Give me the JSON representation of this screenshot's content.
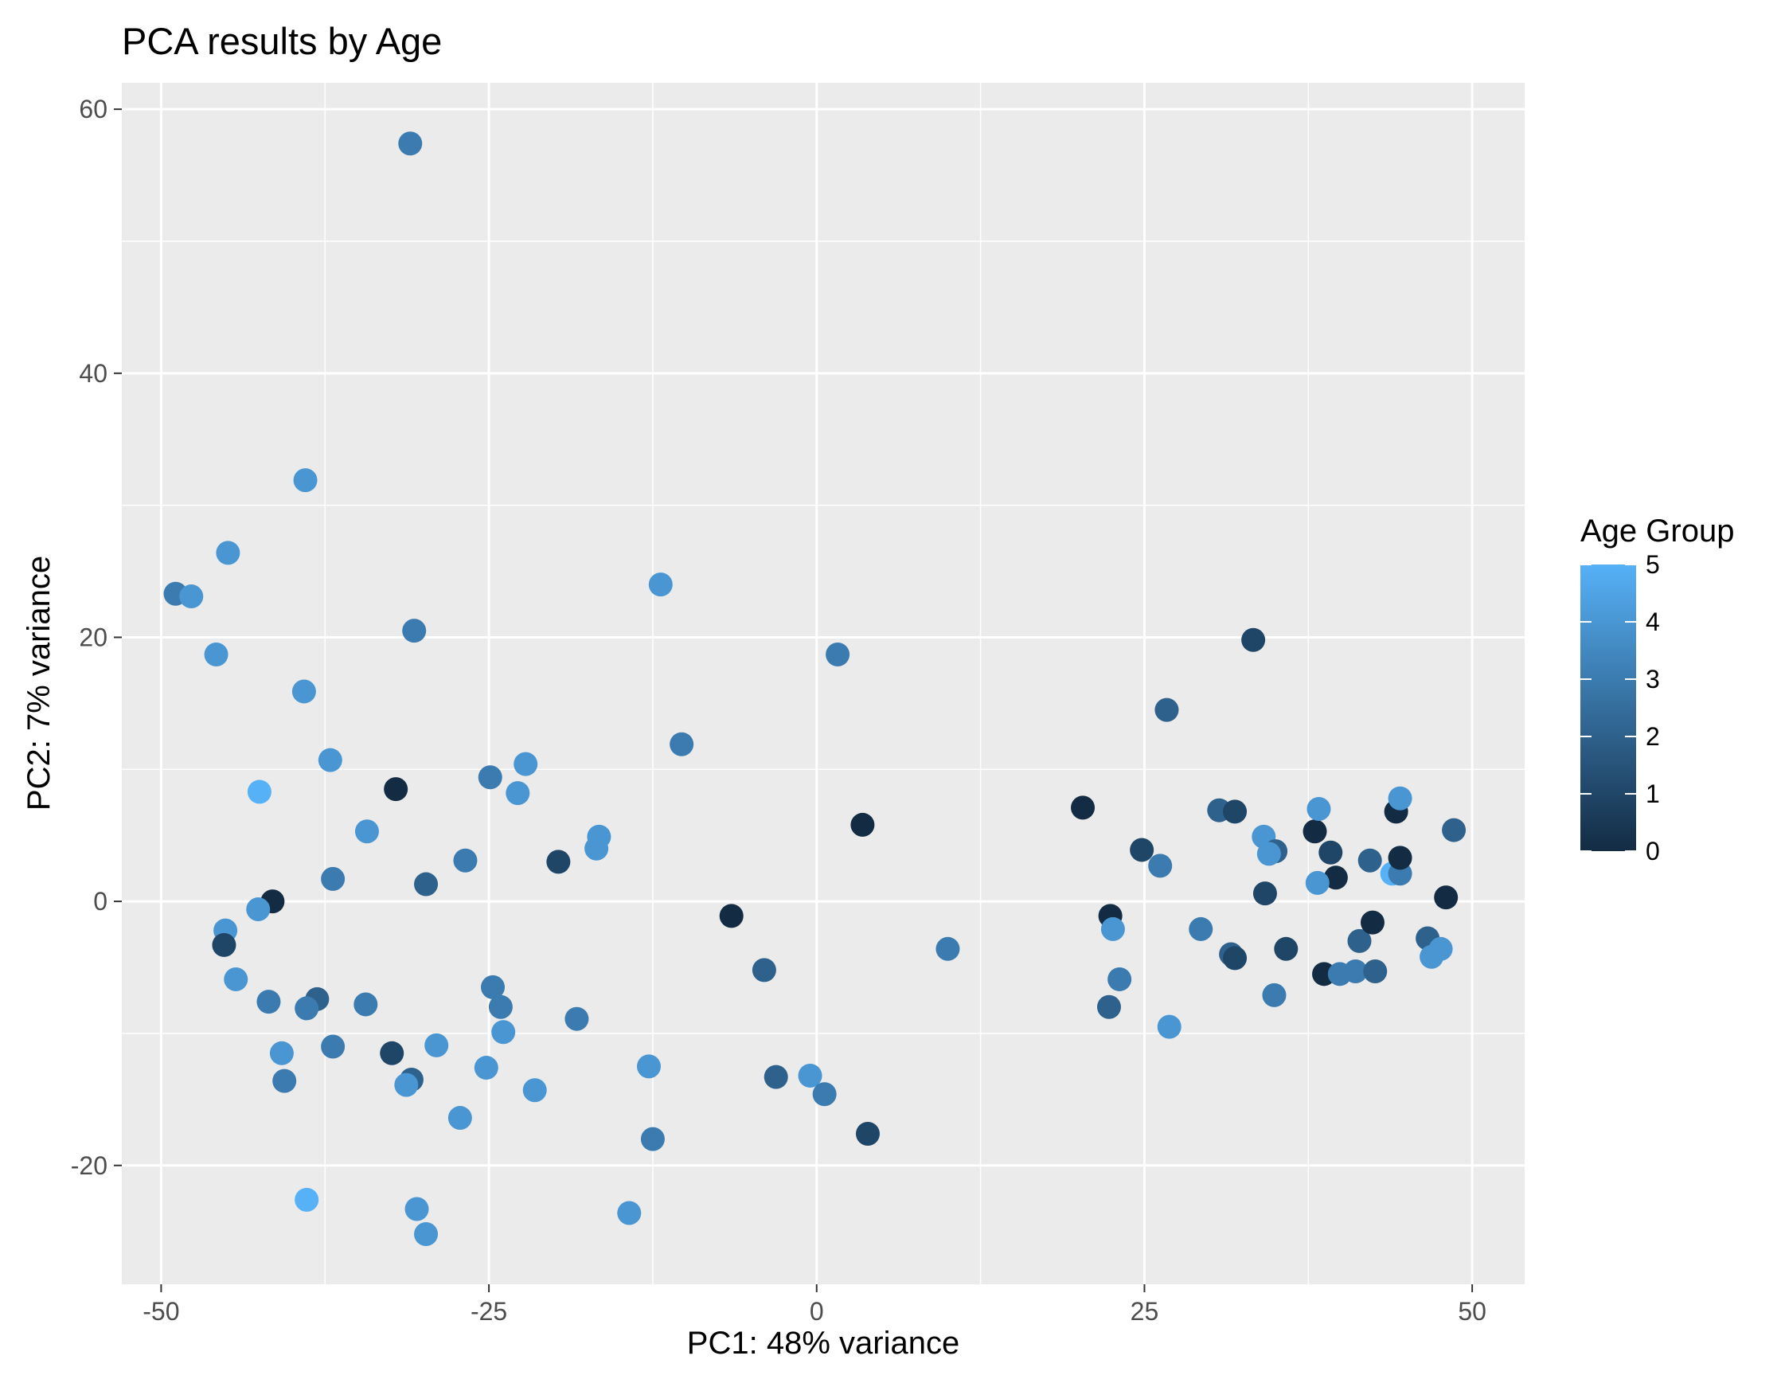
{
  "chart_data": {
    "type": "scatter",
    "title": "PCA results by Age",
    "xlabel": "PC1: 48% variance",
    "ylabel": "PC2: 7% variance",
    "xlim": [
      -53,
      54
    ],
    "ylim": [
      -29,
      62
    ],
    "x_ticks": [
      -50,
      -25,
      0,
      25,
      50
    ],
    "x_tick_labels": [
      "-50",
      "-25",
      "0",
      "25",
      "50"
    ],
    "y_ticks": [
      -20,
      0,
      20,
      40,
      60
    ],
    "y_tick_labels": [
      "-20",
      "0",
      "20",
      "40",
      "60"
    ],
    "grid": true,
    "legend": {
      "title": "Age Group",
      "position": "right",
      "type": "colorbar",
      "min": 0,
      "max": 5,
      "labels": [
        "0",
        "1",
        "2",
        "3",
        "4",
        "5"
      ],
      "color_low": "#132B43",
      "color_high": "#56B1F7"
    },
    "colors": {
      "panel": "#EBEBEB",
      "grid": "#FFFFFF",
      "tick": "#333333"
    },
    "points": [
      {
        "x": -31.0,
        "y": 57.4,
        "age": 3
      },
      {
        "x": -39.0,
        "y": 31.9,
        "age": 4
      },
      {
        "x": -44.9,
        "y": 26.4,
        "age": 4
      },
      {
        "x": -48.9,
        "y": 23.3,
        "age": 3
      },
      {
        "x": -47.7,
        "y": 23.1,
        "age": 4
      },
      {
        "x": -45.8,
        "y": 18.7,
        "age": 4
      },
      {
        "x": -30.7,
        "y": 20.5,
        "age": 3
      },
      {
        "x": -39.1,
        "y": 15.9,
        "age": 4
      },
      {
        "x": -37.1,
        "y": 10.7,
        "age": 4
      },
      {
        "x": -42.5,
        "y": 8.3,
        "age": 5
      },
      {
        "x": -32.1,
        "y": 8.5,
        "age": 0
      },
      {
        "x": -34.3,
        "y": 5.3,
        "age": 4
      },
      {
        "x": -36.9,
        "y": 1.7,
        "age": 3
      },
      {
        "x": -29.8,
        "y": 1.3,
        "age": 2
      },
      {
        "x": -26.8,
        "y": 3.1,
        "age": 3
      },
      {
        "x": -24.9,
        "y": 9.4,
        "age": 3
      },
      {
        "x": -22.2,
        "y": 10.4,
        "age": 4
      },
      {
        "x": -22.8,
        "y": 8.2,
        "age": 4
      },
      {
        "x": -19.7,
        "y": 3.0,
        "age": 1
      },
      {
        "x": -16.6,
        "y": 4.9,
        "age": 4
      },
      {
        "x": -16.8,
        "y": 4.0,
        "age": 4
      },
      {
        "x": -11.9,
        "y": 24.0,
        "age": 4
      },
      {
        "x": -10.3,
        "y": 11.9,
        "age": 3
      },
      {
        "x": 1.6,
        "y": 18.7,
        "age": 3
      },
      {
        "x": 3.5,
        "y": 5.8,
        "age": 0
      },
      {
        "x": -6.5,
        "y": -1.1,
        "age": 0
      },
      {
        "x": -4.0,
        "y": -5.2,
        "age": 2
      },
      {
        "x": -3.1,
        "y": -13.3,
        "age": 2
      },
      {
        "x": -0.5,
        "y": -13.2,
        "age": 4
      },
      {
        "x": 0.6,
        "y": -14.6,
        "age": 3
      },
      {
        "x": 3.9,
        "y": -17.6,
        "age": 1
      },
      {
        "x": 10.0,
        "y": -3.6,
        "age": 3
      },
      {
        "x": -41.5,
        "y": 0.0,
        "age": 0
      },
      {
        "x": -42.6,
        "y": -0.6,
        "age": 4
      },
      {
        "x": -45.1,
        "y": -2.2,
        "age": 4
      },
      {
        "x": -45.2,
        "y": -3.3,
        "age": 1
      },
      {
        "x": -44.3,
        "y": -5.9,
        "age": 4
      },
      {
        "x": -41.8,
        "y": -7.6,
        "age": 3
      },
      {
        "x": -38.1,
        "y": -7.4,
        "age": 2
      },
      {
        "x": -38.9,
        "y": -8.1,
        "age": 3
      },
      {
        "x": -34.4,
        "y": -7.8,
        "age": 3
      },
      {
        "x": -36.9,
        "y": -11.0,
        "age": 3
      },
      {
        "x": -40.8,
        "y": -11.5,
        "age": 4
      },
      {
        "x": -40.6,
        "y": -13.6,
        "age": 3
      },
      {
        "x": -32.4,
        "y": -11.5,
        "age": 1
      },
      {
        "x": -30.9,
        "y": -13.5,
        "age": 2
      },
      {
        "x": -31.3,
        "y": -13.9,
        "age": 4
      },
      {
        "x": -29.0,
        "y": -10.9,
        "age": 4
      },
      {
        "x": -27.2,
        "y": -16.4,
        "age": 4
      },
      {
        "x": -25.2,
        "y": -12.6,
        "age": 4
      },
      {
        "x": -24.7,
        "y": -6.5,
        "age": 3
      },
      {
        "x": -24.1,
        "y": -8.0,
        "age": 3
      },
      {
        "x": -23.9,
        "y": -9.9,
        "age": 4
      },
      {
        "x": -21.5,
        "y": -14.3,
        "age": 4
      },
      {
        "x": -18.3,
        "y": -8.9,
        "age": 3
      },
      {
        "x": -12.8,
        "y": -12.5,
        "age": 4
      },
      {
        "x": -12.5,
        "y": -18.0,
        "age": 3
      },
      {
        "x": -14.3,
        "y": -23.6,
        "age": 4
      },
      {
        "x": -38.9,
        "y": -22.6,
        "age": 5
      },
      {
        "x": -30.5,
        "y": -23.3,
        "age": 4
      },
      {
        "x": -29.8,
        "y": -25.2,
        "age": 4
      },
      {
        "x": 20.3,
        "y": 7.1,
        "age": 0
      },
      {
        "x": 24.8,
        "y": 3.9,
        "age": 1
      },
      {
        "x": 26.2,
        "y": 2.7,
        "age": 3
      },
      {
        "x": 26.7,
        "y": 14.5,
        "age": 2
      },
      {
        "x": 22.4,
        "y": -1.1,
        "age": 0
      },
      {
        "x": 22.6,
        "y": -2.1,
        "age": 4
      },
      {
        "x": 23.1,
        "y": -5.9,
        "age": 3
      },
      {
        "x": 22.3,
        "y": -8.0,
        "age": 2
      },
      {
        "x": 26.9,
        "y": -9.5,
        "age": 4
      },
      {
        "x": 29.3,
        "y": -2.1,
        "age": 3
      },
      {
        "x": 30.7,
        "y": 6.9,
        "age": 2
      },
      {
        "x": 31.9,
        "y": 6.8,
        "age": 1
      },
      {
        "x": 31.6,
        "y": -4.0,
        "age": 2
      },
      {
        "x": 31.9,
        "y": -4.3,
        "age": 1
      },
      {
        "x": 33.3,
        "y": 19.8,
        "age": 1
      },
      {
        "x": 34.1,
        "y": 4.9,
        "age": 4
      },
      {
        "x": 35.0,
        "y": 3.8,
        "age": 2
      },
      {
        "x": 34.5,
        "y": 3.6,
        "age": 4
      },
      {
        "x": 34.2,
        "y": 0.6,
        "age": 1
      },
      {
        "x": 35.8,
        "y": -3.6,
        "age": 1
      },
      {
        "x": 34.9,
        "y": -7.1,
        "age": 3
      },
      {
        "x": 38.0,
        "y": 5.3,
        "age": 0
      },
      {
        "x": 38.3,
        "y": 7.0,
        "age": 4
      },
      {
        "x": 39.2,
        "y": 3.7,
        "age": 1
      },
      {
        "x": 39.6,
        "y": 1.8,
        "age": 0
      },
      {
        "x": 38.2,
        "y": 1.4,
        "age": 4
      },
      {
        "x": 38.7,
        "y": -5.5,
        "age": 0
      },
      {
        "x": 39.9,
        "y": -5.5,
        "age": 3
      },
      {
        "x": 41.1,
        "y": -5.3,
        "age": 3
      },
      {
        "x": 41.4,
        "y": -3.0,
        "age": 2
      },
      {
        "x": 42.2,
        "y": 3.1,
        "age": 2
      },
      {
        "x": 42.4,
        "y": -1.6,
        "age": 0
      },
      {
        "x": 42.6,
        "y": -5.3,
        "age": 2
      },
      {
        "x": 43.9,
        "y": 2.1,
        "age": 5
      },
      {
        "x": 44.5,
        "y": 2.1,
        "age": 3
      },
      {
        "x": 44.2,
        "y": 6.8,
        "age": 0
      },
      {
        "x": 44.5,
        "y": 7.8,
        "age": 4
      },
      {
        "x": 44.5,
        "y": 3.3,
        "age": 0
      },
      {
        "x": 46.6,
        "y": -2.8,
        "age": 2
      },
      {
        "x": 46.9,
        "y": -4.2,
        "age": 4
      },
      {
        "x": 47.6,
        "y": -3.6,
        "age": 4
      },
      {
        "x": 48.0,
        "y": 0.3,
        "age": 0
      },
      {
        "x": 48.6,
        "y": 5.4,
        "age": 2
      }
    ]
  }
}
